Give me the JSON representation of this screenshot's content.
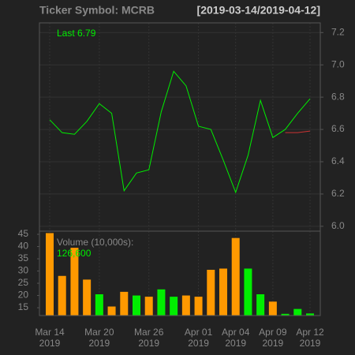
{
  "chart_data": [
    {
      "type": "line",
      "title": "Ticker Symbol: MCRB",
      "subtitle": "[2019-03-14/2019-04-12]",
      "legend_text": "Last 6.79",
      "series": [
        {
          "color": "#00ee00",
          "values": [
            6.66,
            6.58,
            6.57,
            6.65,
            6.76,
            6.7,
            6.22,
            6.33,
            6.35,
            6.71,
            6.96,
            6.87,
            6.62,
            6.6,
            6.41,
            6.21,
            6.44,
            6.78,
            6.55,
            6.6,
            6.7,
            6.79
          ]
        },
        {
          "color": "#cc3333",
          "values": [
            null,
            null,
            null,
            null,
            null,
            null,
            null,
            null,
            null,
            null,
            null,
            null,
            null,
            null,
            null,
            null,
            null,
            null,
            null,
            6.58,
            6.58,
            6.59
          ]
        }
      ],
      "ylim": [
        5.97,
        7.26
      ],
      "yticks": [
        {
          "value": 6,
          "label": "6.0"
        },
        6.2,
        6.4,
        6.6,
        6.8,
        {
          "value": 7,
          "label": "7.0"
        },
        7.2
      ],
      "grid": true
    },
    {
      "type": "bar",
      "legend_text": "Volume (10,000s):",
      "legend_value": "126,600",
      "categories": [
        "Mar 14",
        null,
        null,
        null,
        "Mar 20",
        null,
        null,
        null,
        "Mar 26",
        null,
        null,
        null,
        "Apr 01",
        null,
        null,
        "Apr 04",
        null,
        null,
        "Apr 09",
        null,
        null,
        "Apr 12"
      ],
      "category_years": [
        "2019",
        null,
        null,
        null,
        "2019",
        null,
        null,
        null,
        "2019",
        null,
        null,
        null,
        "2019",
        null,
        null,
        "2019",
        null,
        null,
        "2019",
        null,
        null,
        "2019"
      ],
      "values": [
        45.5,
        28,
        39.5,
        26.5,
        20.5,
        15.5,
        21.5,
        20,
        19.5,
        22.5,
        19.5,
        20,
        19.5,
        30.5,
        31,
        43.5,
        31,
        20.5,
        17.5,
        12.5,
        14.5,
        12.66
      ],
      "colors": [
        "#ff9900",
        "#ff9900",
        "#ff9900",
        "#ff9900",
        "#00ee00",
        "#ff9900",
        "#ff9900",
        "#00ee00",
        "#ff9900",
        "#00ee00",
        "#00ee00",
        "#ff9900",
        "#ff9900",
        "#ff9900",
        "#ff9900",
        "#ff9900",
        "#00ee00",
        "#00ee00",
        "#ff9900",
        "#00ee00",
        "#00ee00",
        "#00ee00"
      ],
      "ylim": [
        11.8,
        46.3
      ],
      "yticks": [
        15,
        20,
        25,
        30,
        35,
        40,
        45
      ]
    }
  ]
}
